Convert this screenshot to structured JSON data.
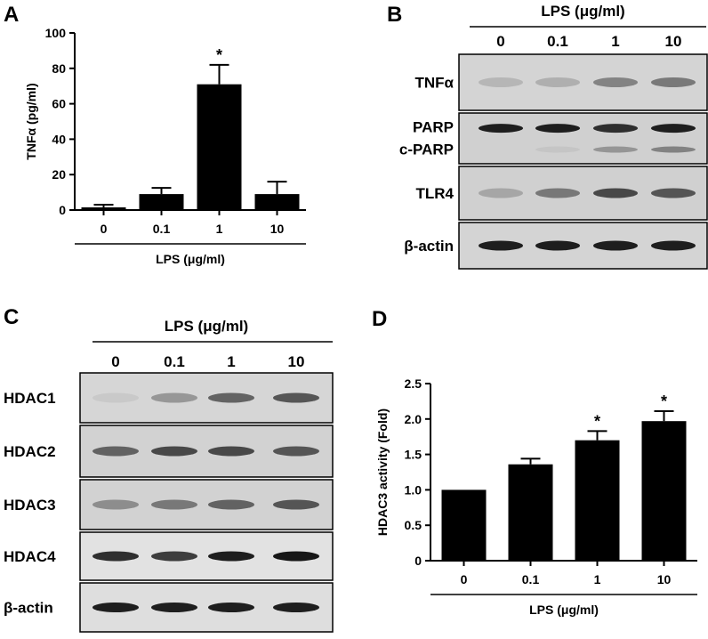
{
  "panels": {
    "A": {
      "letter": "A",
      "chart_data": {
        "type": "bar",
        "categories": [
          "0",
          "0.1",
          "1",
          "10"
        ],
        "values": [
          1.5,
          9,
          71,
          9
        ],
        "errors": [
          1.5,
          3.5,
          11,
          7
        ],
        "significant": [
          false,
          false,
          true,
          false
        ],
        "significance_marker": "*",
        "xlabel": "LPS (μg/ml)",
        "ylabel": "TNFα (pg/ml)",
        "ylim": [
          0,
          100
        ],
        "yticks": [
          "0",
          "20",
          "40",
          "60",
          "80",
          "100"
        ],
        "bar_color": "#000000"
      }
    },
    "B": {
      "letter": "B",
      "header": "LPS (μg/ml)",
      "lanes": [
        "0",
        "0.1",
        "1",
        "10"
      ],
      "blots": [
        {
          "label": "TNFα",
          "intensity": [
            0.25,
            0.3,
            0.55,
            0.6
          ]
        },
        {
          "label": "PARP",
          "label2": "c-PARP",
          "intensity": [
            0.95,
            0.95,
            0.9,
            0.95
          ],
          "intensity2": [
            0.0,
            0.1,
            0.45,
            0.55
          ]
        },
        {
          "label": "TLR4",
          "intensity": [
            0.35,
            0.6,
            0.8,
            0.75
          ]
        },
        {
          "label": "β-actin",
          "intensity": [
            0.95,
            0.95,
            0.95,
            0.95
          ]
        }
      ]
    },
    "C": {
      "letter": "C",
      "header": "LPS (μg/ml)",
      "lanes": [
        "0",
        "0.1",
        "1",
        "10"
      ],
      "blots": [
        {
          "label": "HDAC1",
          "intensity": [
            0.1,
            0.45,
            0.7,
            0.75
          ]
        },
        {
          "label": "HDAC2",
          "intensity": [
            0.7,
            0.8,
            0.8,
            0.75
          ]
        },
        {
          "label": "HDAC3",
          "intensity": [
            0.5,
            0.6,
            0.7,
            0.75
          ]
        },
        {
          "label": "HDAC4",
          "intensity": [
            0.9,
            0.85,
            0.95,
            0.98
          ]
        },
        {
          "label": "β-actin",
          "intensity": [
            0.95,
            0.95,
            0.95,
            0.95
          ]
        }
      ]
    },
    "D": {
      "letter": "D",
      "chart_data": {
        "type": "bar",
        "categories": [
          "0",
          "0.1",
          "1",
          "10"
        ],
        "values": [
          1.0,
          1.36,
          1.7,
          1.97
        ],
        "errors": [
          0.0,
          0.08,
          0.13,
          0.14
        ],
        "significant": [
          false,
          false,
          true,
          true
        ],
        "significance_marker": "*",
        "xlabel": "LPS (μg/ml)",
        "ylabel": "HDAC3 activity (Fold)",
        "ylim": [
          0,
          2.5
        ],
        "yticks": [
          "0",
          "0.5",
          "1.0",
          "1.5",
          "2.0",
          "2.5"
        ],
        "bar_color": "#000000"
      }
    }
  }
}
